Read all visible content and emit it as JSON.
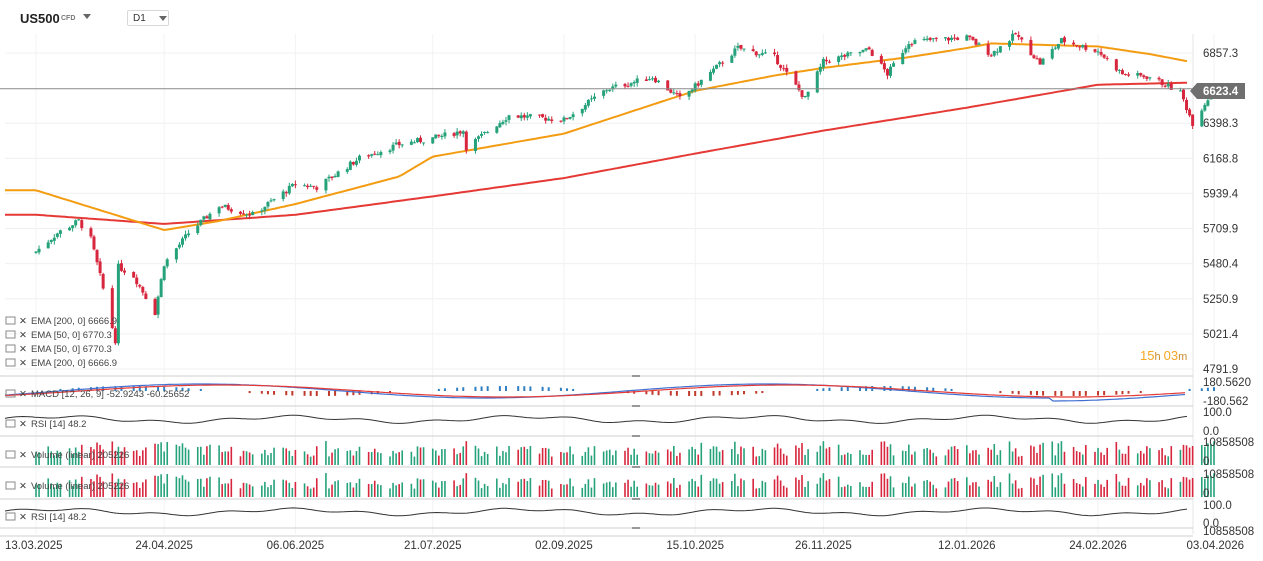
{
  "header": {
    "symbol": "US500",
    "symbol_type": "CFD",
    "timeframe": "D1"
  },
  "price_axis": {
    "ticks": [
      "6857.3",
      "6398.3",
      "6168.8",
      "5939.4",
      "5709.9",
      "5480.4",
      "5250.9",
      "5021.4",
      "4791.9"
    ],
    "current_price": "6623.4"
  },
  "countdown": {
    "hours": "15",
    "h": "h",
    "minutes": "03",
    "m": "m"
  },
  "indicators": {
    "main_labels": [
      "EMA [200, 0] 6666.9",
      "EMA [50, 0] 6770.3",
      "EMA [50, 0] 6770.3",
      "EMA [200, 0] 6666.9"
    ],
    "macd": {
      "label": "MACD [12, 26, 9] -52.9243 -60.25652",
      "axis_top": "180.5620",
      "axis_bottom": "-180.562"
    },
    "rsi1": {
      "label": "RSI [14] 48.2",
      "axis_top": "100.0",
      "axis_bottom": "0.0"
    },
    "vol1": {
      "label": "Volume (linear) 205226",
      "axis_top": "10858508",
      "axis_bottom": "0"
    },
    "vol2": {
      "label": "Volume (linear) 205226",
      "axis_top": "10858508",
      "axis_bottom": "0"
    },
    "rsi2": {
      "label": "RSI [14] 48.2",
      "axis_top": "100.0",
      "axis_bottom": "0.0"
    },
    "partial_axis": "10858508"
  },
  "x_axis": [
    "13.03.2025",
    "24.04.2025",
    "06.06.2025",
    "21.07.2025",
    "02.09.2025",
    "15.10.2025",
    "26.11.2025",
    "12.01.2026",
    "24.02.2026",
    "03.04.2026"
  ],
  "colors": {
    "up": "#26a27b",
    "down": "#d7263d",
    "ema50": "#f39c12",
    "ema200": "#e53935",
    "macd_line": "#3f6fd0",
    "macd_signal": "#e53935",
    "rsi": "#333333",
    "price_tag": "#6f6f6f"
  },
  "chart_data": {
    "type": "candlestick",
    "symbol": "US500",
    "timeframe": "D1",
    "x_range": [
      "13.03.2025",
      "03.04.2026"
    ],
    "y_range": [
      4791.9,
      7000
    ],
    "current_price": 6623.4,
    "close_path": [
      [
        "13.03.2025",
        5560
      ],
      [
        "20.03.2025",
        5680
      ],
      [
        "27.03.2025",
        5760
      ],
      [
        "31.03.2025",
        5640
      ],
      [
        "03.04.2025",
        5400
      ],
      [
        "08.04.2025",
        4980
      ],
      [
        "09.04.2025",
        5460
      ],
      [
        "14.04.2025",
        5400
      ],
      [
        "21.04.2025",
        5160
      ],
      [
        "24.04.2025",
        5480
      ],
      [
        "02.05.2025",
        5680
      ],
      [
        "12.05.2025",
        5860
      ],
      [
        "23.05.2025",
        5800
      ],
      [
        "06.06.2025",
        6000
      ],
      [
        "13.06.2025",
        5980
      ],
      [
        "27.06.2025",
        6170
      ],
      [
        "10.07.2025",
        6260
      ],
      [
        "21.07.2025",
        6300
      ],
      [
        "31.07.2025",
        6350
      ],
      [
        "01.08.2025",
        6240
      ],
      [
        "15.08.2025",
        6450
      ],
      [
        "02.09.2025",
        6420
      ],
      [
        "16.09.2025",
        6620
      ],
      [
        "01.10.2025",
        6700
      ],
      [
        "10.10.2025",
        6560
      ],
      [
        "15.10.2025",
        6640
      ],
      [
        "29.10.2025",
        6890
      ],
      [
        "10.11.2025",
        6830
      ],
      [
        "20.11.2025",
        6560
      ],
      [
        "26.11.2025",
        6800
      ],
      [
        "11.12.2025",
        6880
      ],
      [
        "17.12.2025",
        6720
      ],
      [
        "24.12.2025",
        6930
      ],
      [
        "12.01.2026",
        6960
      ],
      [
        "20.01.2026",
        6850
      ],
      [
        "28.01.2026",
        6980
      ],
      [
        "05.02.2026",
        6790
      ],
      [
        "12.02.2026",
        6940
      ],
      [
        "24.02.2026",
        6870
      ],
      [
        "04.03.2026",
        6720
      ],
      [
        "13.03.2026",
        6700
      ],
      [
        "23.03.2026",
        6600
      ],
      [
        "27.03.2026",
        6400
      ],
      [
        "03.04.2026",
        6623
      ]
    ],
    "ema50": [
      [
        "13.03.2025",
        5960
      ],
      [
        "03.04.2025",
        5830
      ],
      [
        "24.04.2025",
        5700
      ],
      [
        "12.05.2025",
        5760
      ],
      [
        "06.06.2025",
        5870
      ],
      [
        "10.07.2025",
        6050
      ],
      [
        "21.07.2025",
        6180
      ],
      [
        "02.09.2025",
        6330
      ],
      [
        "01.10.2025",
        6520
      ],
      [
        "15.10.2025",
        6610
      ],
      [
        "10.11.2025",
        6710
      ],
      [
        "26.11.2025",
        6760
      ],
      [
        "24.12.2025",
        6830
      ],
      [
        "12.01.2026",
        6890
      ],
      [
        "20.01.2026",
        6920
      ],
      [
        "24.02.2026",
        6900
      ],
      [
        "13.03.2026",
        6850
      ],
      [
        "03.04.2026",
        6770.3
      ]
    ],
    "ema200": [
      [
        "13.03.2025",
        5800
      ],
      [
        "24.04.2025",
        5740
      ],
      [
        "06.06.2025",
        5800
      ],
      [
        "21.07.2025",
        5920
      ],
      [
        "02.09.2025",
        6040
      ],
      [
        "15.10.2025",
        6200
      ],
      [
        "26.11.2025",
        6350
      ],
      [
        "12.01.2026",
        6500
      ],
      [
        "24.02.2026",
        6650
      ],
      [
        "03.04.2026",
        6666.9
      ]
    ]
  }
}
